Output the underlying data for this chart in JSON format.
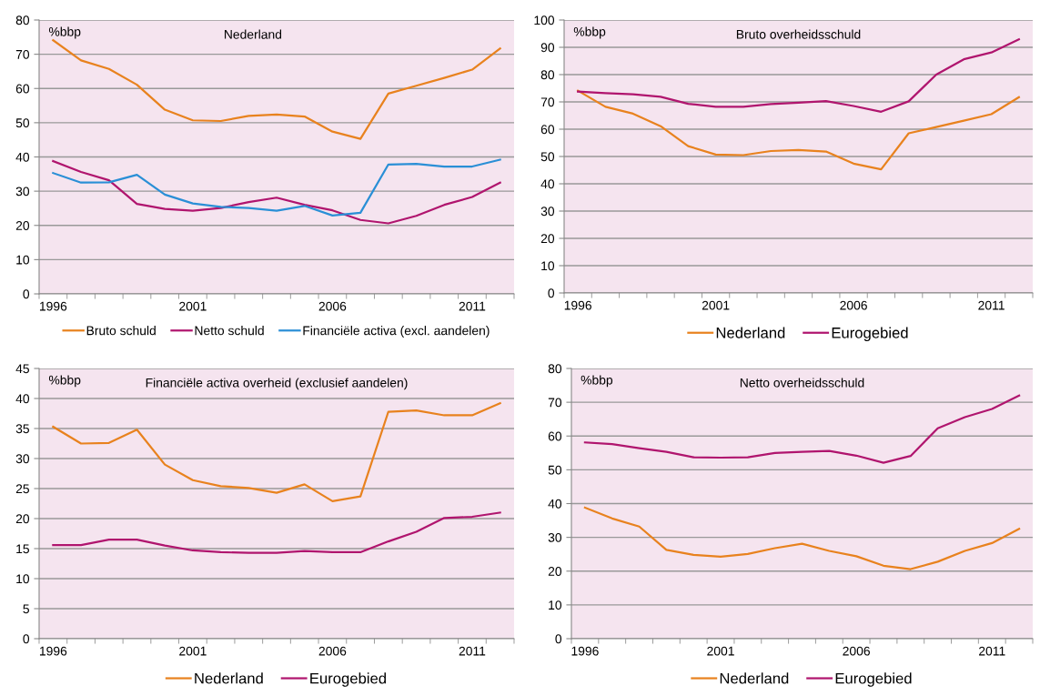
{
  "chart_data": [
    {
      "type": "line",
      "title": "Nederland",
      "ylabel": "%bbp",
      "categories": [
        "1996",
        null,
        null,
        null,
        null,
        "2001",
        null,
        null,
        null,
        null,
        "2006",
        null,
        null,
        null,
        null,
        "2011",
        null
      ],
      "ylim": [
        0,
        80
      ],
      "yticks": [
        0,
        10,
        20,
        30,
        40,
        50,
        60,
        70,
        80
      ],
      "grid": "y",
      "legend": "bottom",
      "series": [
        {
          "name": "Bruto schuld",
          "color": "#e8821e",
          "values": [
            74.1,
            68.2,
            65.7,
            61.1,
            53.8,
            50.7,
            50.5,
            52.0,
            52.4,
            51.8,
            47.4,
            45.3,
            58.5,
            60.8,
            63.1,
            65.5,
            71.7
          ]
        },
        {
          "name": "Netto schuld",
          "color": "#b0156e",
          "values": [
            38.8,
            35.6,
            33.2,
            26.3,
            24.8,
            24.3,
            25.1,
            26.8,
            28.1,
            26.0,
            24.4,
            21.6,
            20.6,
            22.8,
            26.0,
            28.3,
            32.5
          ]
        },
        {
          "name": "Financiële activa (excl. aandelen)",
          "color": "#2a8fd6",
          "values": [
            35.3,
            32.5,
            32.6,
            34.8,
            29.0,
            26.4,
            25.4,
            25.1,
            24.3,
            25.7,
            22.9,
            23.7,
            37.8,
            38.0,
            37.2,
            37.2,
            39.2
          ]
        }
      ]
    },
    {
      "type": "line",
      "title": "Bruto overheidsschuld",
      "ylabel": "%bbp",
      "categories": [
        "1996",
        null,
        null,
        null,
        null,
        "2001",
        null,
        null,
        null,
        null,
        "2006",
        null,
        null,
        null,
        null,
        "2011",
        null
      ],
      "ylim": [
        0,
        100
      ],
      "yticks": [
        0,
        10,
        20,
        30,
        40,
        50,
        60,
        70,
        80,
        90,
        100
      ],
      "grid": "y",
      "legend": "bottom",
      "series": [
        {
          "name": "Nederland",
          "color": "#e8821e",
          "values": [
            74.1,
            68.2,
            65.7,
            61.1,
            53.8,
            50.7,
            50.5,
            52.0,
            52.4,
            51.8,
            47.4,
            45.3,
            58.5,
            60.8,
            63.1,
            65.5,
            71.7
          ]
        },
        {
          "name": "Eurogebied",
          "color": "#b0156e",
          "values": [
            73.8,
            73.2,
            72.8,
            71.9,
            69.3,
            68.2,
            68.2,
            69.2,
            69.7,
            70.3,
            68.5,
            66.4,
            70.2,
            80.0,
            85.6,
            88.1,
            92.9
          ]
        }
      ]
    },
    {
      "type": "line",
      "title": "Financiële activa overheid (exclusief aandelen)",
      "ylabel": "%bbp",
      "categories": [
        "1996",
        null,
        null,
        null,
        null,
        "2001",
        null,
        null,
        null,
        null,
        "2006",
        null,
        null,
        null,
        null,
        "2011",
        null
      ],
      "ylim": [
        0,
        45
      ],
      "yticks": [
        0,
        5,
        10,
        15,
        20,
        25,
        30,
        35,
        40,
        45
      ],
      "grid": "y",
      "legend": "bottom",
      "series": [
        {
          "name": "Nederland",
          "color": "#e8821e",
          "values": [
            35.3,
            32.5,
            32.6,
            34.8,
            29.0,
            26.4,
            25.4,
            25.1,
            24.3,
            25.7,
            22.9,
            23.7,
            37.8,
            38.0,
            37.2,
            37.2,
            39.2
          ]
        },
        {
          "name": "Eurogebied",
          "color": "#b0156e",
          "values": [
            15.6,
            15.6,
            16.5,
            16.5,
            15.5,
            14.7,
            14.4,
            14.3,
            14.3,
            14.6,
            14.4,
            14.4,
            16.2,
            17.8,
            20.1,
            20.3,
            21.0
          ]
        }
      ]
    },
    {
      "type": "line",
      "title": "Netto overheidsschuld",
      "ylabel": "%bbp",
      "categories": [
        "1996",
        null,
        null,
        null,
        null,
        "2001",
        null,
        null,
        null,
        null,
        "2006",
        null,
        null,
        null,
        null,
        "2011",
        null
      ],
      "ylim": [
        0,
        80
      ],
      "yticks": [
        0,
        10,
        20,
        30,
        40,
        50,
        60,
        70,
        80
      ],
      "grid": "y",
      "legend": "bottom",
      "series": [
        {
          "name": "Nederland",
          "color": "#e8821e",
          "values": [
            38.8,
            35.6,
            33.2,
            26.3,
            24.8,
            24.3,
            25.1,
            26.8,
            28.1,
            26.0,
            24.4,
            21.6,
            20.6,
            22.8,
            26.0,
            28.3,
            32.5
          ]
        },
        {
          "name": "Eurogebied",
          "color": "#b0156e",
          "values": [
            58.1,
            57.6,
            56.4,
            55.3,
            53.7,
            53.6,
            53.7,
            55.0,
            55.3,
            55.6,
            54.2,
            52.1,
            54.1,
            62.3,
            65.6,
            68.0,
            72.0
          ]
        }
      ]
    }
  ]
}
